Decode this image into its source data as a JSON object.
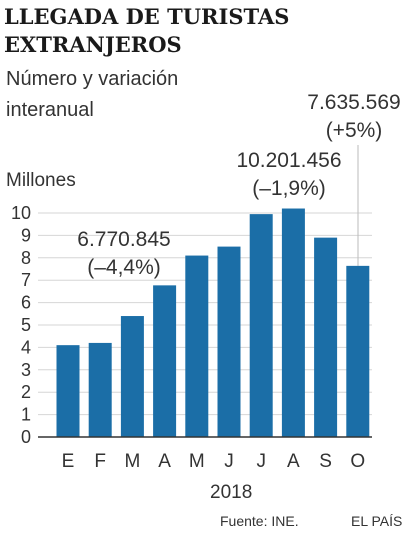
{
  "header": {
    "title_line1": "LLEGADA DE TURISTAS",
    "title_line2": "EXTRANJEROS",
    "subtitle_line1": "Número y variación",
    "subtitle_line2": "interanual"
  },
  "footer": {
    "source": "Fuente: INE.",
    "brand": "EL PAÍS"
  },
  "colors": {
    "bar": "#1b6ea7",
    "grid": "#d6d6d6",
    "axis": "#333333",
    "leader": "#bbbbbb"
  },
  "chart_data": {
    "type": "bar",
    "title": "LLEGADA DE TURISTAS EXTRANJEROS",
    "subtitle": "Número y variación interanual",
    "ylabel": "Millones",
    "xlabel": "2018",
    "categories": [
      "E",
      "F",
      "M",
      "A",
      "M",
      "J",
      "J",
      "A",
      "S",
      "O"
    ],
    "values": [
      4.1,
      4.2,
      5.4,
      6.77,
      8.1,
      8.5,
      9.95,
      10.2,
      8.9,
      7.64
    ],
    "ylim": [
      0,
      10
    ],
    "yticks": [
      "0",
      "1",
      "2",
      "3",
      "4",
      "5",
      "6",
      "7",
      "8",
      "9",
      "10"
    ],
    "grid": true,
    "annotations": [
      {
        "category_index": 3,
        "value": "6.770.845",
        "change": "(–4,4%)"
      },
      {
        "category_index": 7,
        "value": "10.201.456",
        "change": "(–1,9%)"
      },
      {
        "category_index": 9,
        "value": "7.635.569",
        "change": "(+5%)"
      }
    ]
  }
}
